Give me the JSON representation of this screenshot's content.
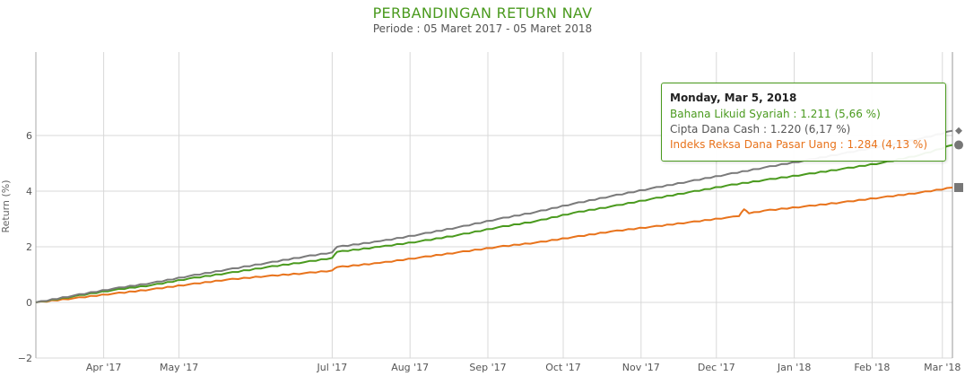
{
  "header": {
    "title": "PERBANDINGAN RETURN NAV",
    "subtitle": "Periode : 05 Maret 2017 - 05 Maret 2018"
  },
  "colors": {
    "title": "#4a9a1e",
    "series_1": "#4a9a1e",
    "series_2": "#7a7a7a",
    "series_3": "#e8731c",
    "grid": "#d8d8d8",
    "tooltip_border": "#4a9a1e"
  },
  "chart_data": {
    "type": "line",
    "title": "PERBANDINGAN RETURN NAV",
    "subtitle": "Periode : 05 Maret 2017 - 05 Maret 2018",
    "xlabel": "",
    "ylabel": "Return (%)",
    "x_start": "2017-03-05",
    "x_end": "2018-03-05",
    "ylim": [
      -2,
      9
    ],
    "yticks": [
      -2,
      0,
      2,
      4,
      6
    ],
    "xticks": [
      {
        "date": "2017-04-01",
        "label": "Apr '17"
      },
      {
        "date": "2017-05-01",
        "label": "May '17"
      },
      {
        "date": "2017-07-01",
        "label": "Jul '17"
      },
      {
        "date": "2017-08-01",
        "label": "Aug '17"
      },
      {
        "date": "2017-09-01",
        "label": "Sep '17"
      },
      {
        "date": "2017-10-01",
        "label": "Oct '17"
      },
      {
        "date": "2017-11-01",
        "label": "Nov '17"
      },
      {
        "date": "2017-12-01",
        "label": "Dec '17"
      },
      {
        "date": "2018-01-01",
        "label": "Jan '18"
      },
      {
        "date": "2018-02-01",
        "label": "Feb '18"
      },
      {
        "date": "2018-03-01",
        "label": "Mar '18"
      }
    ],
    "grid": true,
    "series": [
      {
        "name": "Bahana Likuid Syariah",
        "color": "#4a9a1e",
        "marker": "circle",
        "points": [
          [
            "2017-03-05",
            0.0
          ],
          [
            "2017-03-20",
            0.22
          ],
          [
            "2017-04-05",
            0.45
          ],
          [
            "2017-04-20",
            0.62
          ],
          [
            "2017-05-05",
            0.86
          ],
          [
            "2017-05-20",
            1.05
          ],
          [
            "2017-06-05",
            1.27
          ],
          [
            "2017-06-20",
            1.45
          ],
          [
            "2017-07-01",
            1.6
          ],
          [
            "2017-07-03",
            1.82
          ],
          [
            "2017-07-20",
            2.0
          ],
          [
            "2017-08-05",
            2.2
          ],
          [
            "2017-08-20",
            2.42
          ],
          [
            "2017-09-05",
            2.7
          ],
          [
            "2017-09-20",
            2.92
          ],
          [
            "2017-10-05",
            3.22
          ],
          [
            "2017-10-20",
            3.45
          ],
          [
            "2017-11-05",
            3.72
          ],
          [
            "2017-11-20",
            3.96
          ],
          [
            "2017-12-05",
            4.2
          ],
          [
            "2017-12-20",
            4.4
          ],
          [
            "2018-01-05",
            4.6
          ],
          [
            "2018-01-20",
            4.8
          ],
          [
            "2018-02-05",
            5.02
          ],
          [
            "2018-02-20",
            5.3
          ],
          [
            "2018-03-05",
            5.66
          ]
        ]
      },
      {
        "name": "Cipta Dana Cash",
        "color": "#7a7a7a",
        "marker": "diamond",
        "points": [
          [
            "2017-03-05",
            0.0
          ],
          [
            "2017-03-20",
            0.25
          ],
          [
            "2017-04-05",
            0.5
          ],
          [
            "2017-04-20",
            0.7
          ],
          [
            "2017-05-05",
            0.95
          ],
          [
            "2017-05-20",
            1.18
          ],
          [
            "2017-06-05",
            1.42
          ],
          [
            "2017-06-20",
            1.65
          ],
          [
            "2017-07-01",
            1.8
          ],
          [
            "2017-07-03",
            2.0
          ],
          [
            "2017-07-20",
            2.2
          ],
          [
            "2017-08-05",
            2.45
          ],
          [
            "2017-08-20",
            2.7
          ],
          [
            "2017-09-05",
            3.0
          ],
          [
            "2017-09-20",
            3.25
          ],
          [
            "2017-10-05",
            3.55
          ],
          [
            "2017-10-20",
            3.82
          ],
          [
            "2017-11-05",
            4.1
          ],
          [
            "2017-11-20",
            4.35
          ],
          [
            "2017-12-05",
            4.6
          ],
          [
            "2017-12-20",
            4.85
          ],
          [
            "2018-01-05",
            5.1
          ],
          [
            "2018-01-20",
            5.35
          ],
          [
            "2018-02-05",
            5.62
          ],
          [
            "2018-02-20",
            5.88
          ],
          [
            "2018-03-05",
            6.17
          ]
        ]
      },
      {
        "name": "Indeks Reksa Dana Pasar Uang",
        "color": "#e8731c",
        "marker": "square",
        "points": [
          [
            "2017-03-05",
            0.0
          ],
          [
            "2017-03-20",
            0.15
          ],
          [
            "2017-04-05",
            0.32
          ],
          [
            "2017-04-20",
            0.47
          ],
          [
            "2017-05-05",
            0.65
          ],
          [
            "2017-05-20",
            0.82
          ],
          [
            "2017-06-05",
            0.95
          ],
          [
            "2017-06-20",
            1.05
          ],
          [
            "2017-07-01",
            1.15
          ],
          [
            "2017-07-03",
            1.27
          ],
          [
            "2017-07-20",
            1.42
          ],
          [
            "2017-08-05",
            1.62
          ],
          [
            "2017-08-20",
            1.8
          ],
          [
            "2017-09-05",
            2.0
          ],
          [
            "2017-09-20",
            2.15
          ],
          [
            "2017-10-05",
            2.35
          ],
          [
            "2017-10-20",
            2.55
          ],
          [
            "2017-11-05",
            2.72
          ],
          [
            "2017-11-20",
            2.88
          ],
          [
            "2017-12-05",
            3.05
          ],
          [
            "2017-12-10",
            3.1
          ],
          [
            "2017-12-12",
            3.35
          ],
          [
            "2017-12-14",
            3.2
          ],
          [
            "2017-12-20",
            3.3
          ],
          [
            "2018-01-05",
            3.45
          ],
          [
            "2018-01-20",
            3.6
          ],
          [
            "2018-02-05",
            3.78
          ],
          [
            "2018-02-20",
            3.95
          ],
          [
            "2018-03-05",
            4.13
          ]
        ]
      }
    ]
  },
  "tooltip": {
    "date": "Monday, Mar 5, 2018",
    "rows": [
      {
        "name": "Bahana Likuid Syariah",
        "value": ": 1.211 (5,66 %)",
        "color": "#4a9a1e"
      },
      {
        "name": "Cipta Dana Cash",
        "value": ": 1.220 (6,17 %)",
        "color": "#555555"
      },
      {
        "name": "Indeks Reksa Dana Pasar Uang",
        "value": ": 1.284 (4,13 %)",
        "color": "#e8731c"
      }
    ]
  }
}
